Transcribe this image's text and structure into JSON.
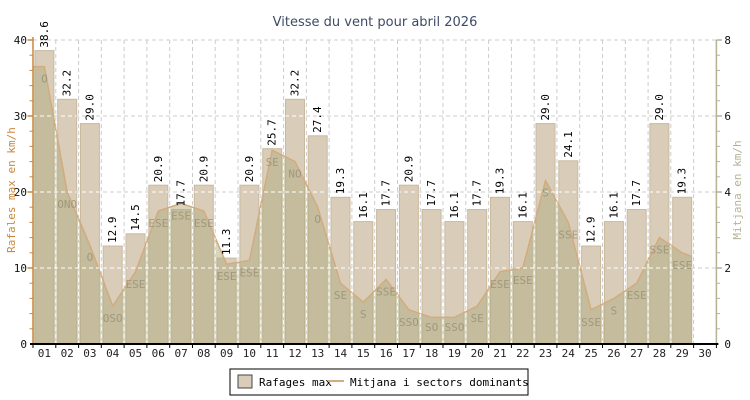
{
  "title": "Vitesse du vent pour abril 2026",
  "legend": {
    "items": [
      {
        "label": "Rafages max",
        "swatch": "bar"
      },
      {
        "label": "Mitjana i sectors dominants",
        "swatch": "line"
      }
    ]
  },
  "colors": {
    "bar_fill": "#d9cdb9",
    "bar_border": "#c9b99d",
    "area_fill": "rgba(175,172,130,0.5)",
    "line": "#d2ab7e",
    "left_axis": "#c9883f",
    "right_axis": "#b5b294",
    "title": "#3e4b66",
    "grid": "#cccccc",
    "grid_over_fill": "#ffffff",
    "tick_text": "#111111",
    "day_text": "#222222",
    "value_text": "#000000",
    "direction_text": "rgba(148,140,115,0.75)",
    "x_axis_line": "#000000",
    "legend_border": "#000000"
  },
  "chart_data": {
    "type": "bar",
    "title": "Vitesse du vent pour abril 2026",
    "categories": [
      "01",
      "02",
      "03",
      "04",
      "05",
      "06",
      "07",
      "08",
      "09",
      "10",
      "11",
      "12",
      "13",
      "14",
      "15",
      "16",
      "17",
      "18",
      "19",
      "20",
      "21",
      "22",
      "23",
      "24",
      "25",
      "26",
      "27",
      "28",
      "29",
      "30"
    ],
    "left_axis": {
      "label": "Rafales max en km/h",
      "min": 0,
      "max": 40,
      "ticks": [
        0,
        10,
        20,
        30,
        40
      ],
      "minor_step": 2
    },
    "right_axis": {
      "label": "Mitjana en km/h",
      "min": 0,
      "max": 8,
      "ticks": [
        0,
        2,
        4,
        6,
        8
      ],
      "minor_step": 0.4
    },
    "grid": "dashed",
    "legend_position": "bottom",
    "series": [
      {
        "name": "Rafages max",
        "type": "bar",
        "axis": "left",
        "values": [
          38.6,
          32.2,
          29.0,
          12.9,
          14.5,
          20.9,
          17.7,
          20.9,
          11.3,
          20.9,
          25.7,
          32.2,
          27.4,
          19.3,
          16.1,
          17.7,
          20.9,
          17.7,
          16.1,
          17.7,
          19.3,
          16.1,
          29.0,
          24.1,
          12.9,
          16.1,
          17.7,
          29.0,
          19.3,
          null
        ]
      },
      {
        "name": "Mitjana",
        "type": "area",
        "axis": "right",
        "values": [
          7.3,
          4.0,
          2.6,
          1.0,
          1.9,
          3.5,
          3.7,
          3.5,
          2.1,
          2.2,
          5.1,
          4.8,
          3.6,
          1.6,
          1.1,
          1.7,
          0.9,
          0.7,
          0.7,
          1.0,
          1.9,
          2.0,
          4.3,
          3.2,
          0.9,
          1.2,
          1.6,
          2.8,
          2.4,
          null
        ]
      },
      {
        "name": "Sectors dominants",
        "type": "labels",
        "values": [
          "O",
          "ONO",
          "O",
          "OSO",
          "ESE",
          "ESE",
          "ESE",
          "ESE",
          "ESE",
          "ESE",
          "SE",
          "NO",
          "O",
          "SE",
          "S",
          "SSE",
          "SSO",
          "SO",
          "SSO",
          "SE",
          "ESE",
          "ESE",
          "S",
          "SSE",
          "SSE",
          "S",
          "ESE",
          "SSE",
          "ESE",
          null
        ]
      }
    ]
  }
}
